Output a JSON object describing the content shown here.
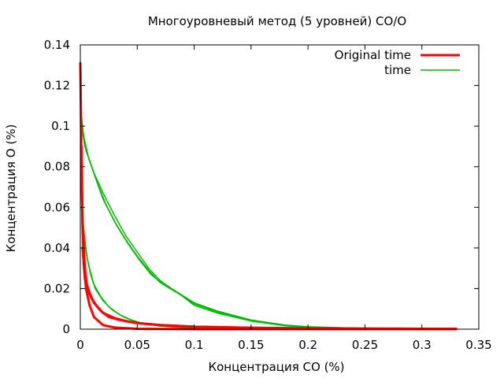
{
  "chart_data": {
    "type": "line",
    "title": "Многоуровневый метод (5 уровней) CO/O",
    "xlabel": "Концентрация CO (%)",
    "ylabel": "Концентрация O (%)",
    "xlim": [
      0,
      0.35
    ],
    "ylim": [
      0,
      0.14
    ],
    "xticks": [
      "0",
      "0.05",
      "0.1",
      "0.15",
      "0.2",
      "0.25",
      "0.3",
      "0.35"
    ],
    "yticks": [
      "0",
      "0.02",
      "0.04",
      "0.06",
      "0.08",
      "0.1",
      "0.12",
      "0.14"
    ],
    "grid": false,
    "legend_position": "top-right",
    "series": [
      {
        "name": "Original time",
        "color": "#ff0000",
        "line_width": 3,
        "curves": [
          [
            [
              0.0,
              0.131
            ],
            [
              0.0005,
              0.11
            ],
            [
              0.001,
              0.08
            ],
            [
              0.002,
              0.05
            ],
            [
              0.003,
              0.032
            ],
            [
              0.005,
              0.02
            ],
            [
              0.008,
              0.012
            ],
            [
              0.012,
              0.006
            ],
            [
              0.02,
              0.002
            ],
            [
              0.03,
              0.0008
            ],
            [
              0.05,
              0.0002
            ],
            [
              0.1,
              0.0
            ],
            [
              0.33,
              0.0
            ]
          ],
          [
            [
              0.001,
              0.09
            ],
            [
              0.002,
              0.05
            ],
            [
              0.004,
              0.03
            ],
            [
              0.006,
              0.02
            ],
            [
              0.01,
              0.015
            ],
            [
              0.015,
              0.011
            ],
            [
              0.02,
              0.008
            ],
            [
              0.03,
              0.0055
            ],
            [
              0.04,
              0.004
            ],
            [
              0.05,
              0.003
            ],
            [
              0.07,
              0.002
            ],
            [
              0.1,
              0.0012
            ],
            [
              0.15,
              0.0007
            ],
            [
              0.2,
              0.0004
            ],
            [
              0.25,
              0.0003
            ],
            [
              0.3,
              0.0002
            ],
            [
              0.33,
              0.0002
            ]
          ],
          [
            [
              0.002,
              0.04
            ],
            [
              0.004,
              0.025
            ],
            [
              0.008,
              0.018
            ],
            [
              0.012,
              0.013
            ],
            [
              0.018,
              0.009
            ],
            [
              0.025,
              0.006
            ],
            [
              0.035,
              0.0045
            ],
            [
              0.05,
              0.003
            ],
            [
              0.07,
              0.002
            ],
            [
              0.1,
              0.0012
            ],
            [
              0.15,
              0.0007
            ],
            [
              0.2,
              0.0004
            ],
            [
              0.25,
              0.0003
            ],
            [
              0.3,
              0.0002
            ],
            [
              0.33,
              0.0002
            ]
          ]
        ]
      },
      {
        "name": "time",
        "color": "#00bb00",
        "line_width": 1.5,
        "curves": [
          [
            [
              0.001,
              0.105
            ],
            [
              0.003,
              0.095
            ],
            [
              0.007,
              0.085
            ],
            [
              0.012,
              0.077
            ],
            [
              0.02,
              0.067
            ],
            [
              0.03,
              0.056
            ],
            [
              0.04,
              0.046
            ],
            [
              0.05,
              0.038
            ],
            [
              0.06,
              0.03
            ],
            [
              0.07,
              0.024
            ],
            [
              0.08,
              0.02
            ],
            [
              0.1,
              0.013
            ],
            [
              0.12,
              0.009
            ],
            [
              0.15,
              0.0045
            ],
            [
              0.18,
              0.002
            ],
            [
              0.2,
              0.0012
            ],
            [
              0.25,
              0.0004
            ],
            [
              0.3,
              0.0001
            ],
            [
              0.33,
              0.0
            ]
          ],
          [
            [
              0.001,
              0.1
            ],
            [
              0.004,
              0.09
            ],
            [
              0.008,
              0.083
            ],
            [
              0.013,
              0.075
            ],
            [
              0.02,
              0.064
            ],
            [
              0.03,
              0.053
            ],
            [
              0.04,
              0.044
            ],
            [
              0.05,
              0.036
            ],
            [
              0.06,
              0.029
            ],
            [
              0.07,
              0.023
            ],
            [
              0.085,
              0.018
            ],
            [
              0.1,
              0.0125
            ],
            [
              0.12,
              0.0085
            ],
            [
              0.15,
              0.0042
            ],
            [
              0.18,
              0.0018
            ],
            [
              0.2,
              0.001
            ],
            [
              0.25,
              0.0004
            ],
            [
              0.3,
              0.0001
            ],
            [
              0.33,
              0.0
            ]
          ],
          [
            [
              0.002,
              0.098
            ],
            [
              0.005,
              0.088
            ],
            [
              0.01,
              0.08
            ],
            [
              0.015,
              0.072
            ],
            [
              0.022,
              0.062
            ],
            [
              0.032,
              0.051
            ],
            [
              0.042,
              0.042
            ],
            [
              0.052,
              0.034
            ],
            [
              0.062,
              0.027
            ],
            [
              0.073,
              0.022
            ],
            [
              0.088,
              0.017
            ],
            [
              0.1,
              0.0118
            ],
            [
              0.12,
              0.008
            ],
            [
              0.15,
              0.004
            ],
            [
              0.18,
              0.0017
            ],
            [
              0.2,
              0.0009
            ],
            [
              0.25,
              0.0003
            ],
            [
              0.3,
              0.0001
            ],
            [
              0.33,
              0.0
            ]
          ],
          [
            [
              0.001,
              0.06
            ],
            [
              0.003,
              0.048
            ],
            [
              0.005,
              0.038
            ],
            [
              0.008,
              0.03
            ],
            [
              0.012,
              0.022
            ],
            [
              0.018,
              0.016
            ],
            [
              0.025,
              0.011
            ],
            [
              0.035,
              0.007
            ],
            [
              0.045,
              0.0045
            ],
            [
              0.055,
              0.0028
            ],
            [
              0.07,
              0.0015
            ],
            [
              0.1,
              0.0006
            ],
            [
              0.15,
              0.0002
            ],
            [
              0.2,
              0.0001
            ],
            [
              0.33,
              0.0
            ]
          ],
          [
            [
              0.002,
              0.055
            ],
            [
              0.004,
              0.044
            ],
            [
              0.006,
              0.035
            ],
            [
              0.009,
              0.027
            ],
            [
              0.013,
              0.02
            ],
            [
              0.02,
              0.014
            ],
            [
              0.028,
              0.0095
            ],
            [
              0.038,
              0.006
            ],
            [
              0.048,
              0.0038
            ],
            [
              0.06,
              0.0024
            ],
            [
              0.08,
              0.0012
            ],
            [
              0.1,
              0.0006
            ],
            [
              0.15,
              0.0002
            ],
            [
              0.33,
              0.0
            ]
          ]
        ]
      }
    ]
  }
}
